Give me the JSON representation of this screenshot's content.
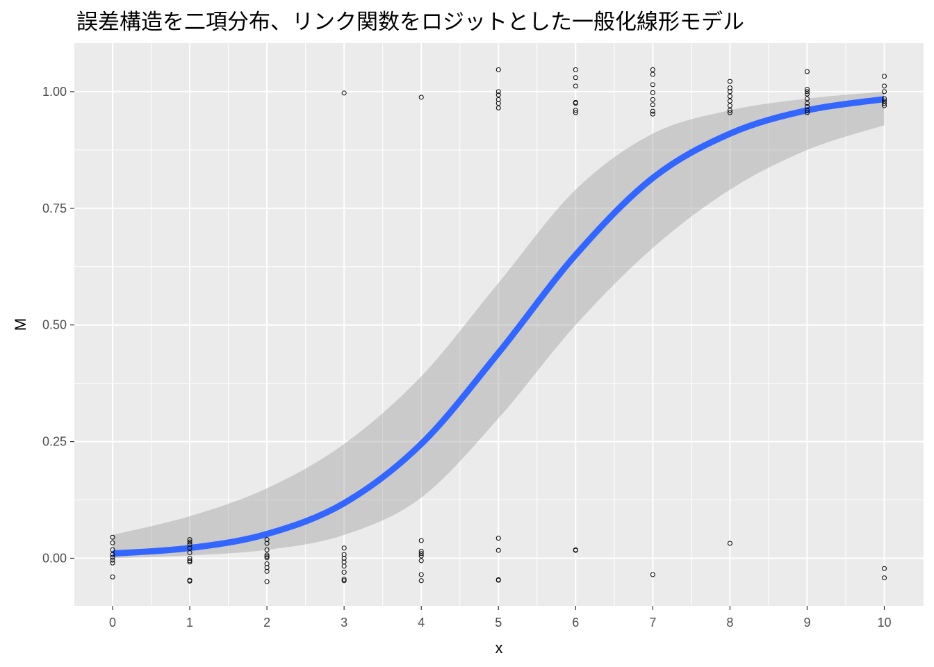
{
  "chart_data": {
    "type": "scatter",
    "title": "誤差構造を二項分布、リンク関数をロジットとした一般化線形モデル",
    "xlabel": "x",
    "ylabel": "M",
    "xlim": [
      -0.5,
      10.5
    ],
    "ylim": [
      -0.105,
      1.105
    ],
    "x_ticks": [
      0,
      1,
      2,
      3,
      4,
      5,
      6,
      7,
      8,
      9,
      10
    ],
    "y_ticks": [
      0.0,
      0.25,
      0.5,
      0.75,
      1.0
    ],
    "y_tick_labels": [
      "0.00",
      "0.25",
      "0.50",
      "0.75",
      "1.00"
    ],
    "grid": true,
    "background": "#ebebeb",
    "points": [
      {
        "x": 0,
        "y": 0.045
      },
      {
        "x": 0,
        "y": 0.033
      },
      {
        "x": 0,
        "y": 0.018
      },
      {
        "x": 0,
        "y": 0.008
      },
      {
        "x": 0,
        "y": 0.002
      },
      {
        "x": 0,
        "y": -0.004
      },
      {
        "x": 0,
        "y": -0.01
      },
      {
        "x": 0,
        "y": -0.04
      },
      {
        "x": 1,
        "y": 0.04
      },
      {
        "x": 1,
        "y": 0.035
      },
      {
        "x": 1,
        "y": 0.03
      },
      {
        "x": 1,
        "y": 0.022
      },
      {
        "x": 1,
        "y": 0.012
      },
      {
        "x": 1,
        "y": 0.0
      },
      {
        "x": 1,
        "y": -0.005
      },
      {
        "x": 1,
        "y": -0.008
      },
      {
        "x": 1,
        "y": -0.047
      },
      {
        "x": 1,
        "y": -0.049
      },
      {
        "x": 2,
        "y": 0.04
      },
      {
        "x": 2,
        "y": 0.032
      },
      {
        "x": 2,
        "y": 0.018
      },
      {
        "x": 2,
        "y": 0.007
      },
      {
        "x": 2,
        "y": 0.004
      },
      {
        "x": 2,
        "y": 0.001
      },
      {
        "x": 2,
        "y": -0.012
      },
      {
        "x": 2,
        "y": -0.02
      },
      {
        "x": 2,
        "y": -0.028
      },
      {
        "x": 2,
        "y": -0.05
      },
      {
        "x": 3,
        "y": 0.997
      },
      {
        "x": 3,
        "y": 0.022
      },
      {
        "x": 3,
        "y": 0.008
      },
      {
        "x": 3,
        "y": 0.0
      },
      {
        "x": 3,
        "y": -0.008
      },
      {
        "x": 3,
        "y": -0.017
      },
      {
        "x": 3,
        "y": -0.03
      },
      {
        "x": 3,
        "y": -0.045
      },
      {
        "x": 3,
        "y": -0.048
      },
      {
        "x": 4,
        "y": 0.988
      },
      {
        "x": 4,
        "y": 0.038
      },
      {
        "x": 4,
        "y": 0.015
      },
      {
        "x": 4,
        "y": 0.01
      },
      {
        "x": 4,
        "y": 0.005
      },
      {
        "x": 4,
        "y": -0.005
      },
      {
        "x": 4,
        "y": -0.035
      },
      {
        "x": 4,
        "y": -0.048
      },
      {
        "x": 5,
        "y": 1.047
      },
      {
        "x": 5,
        "y": 1.0
      },
      {
        "x": 5,
        "y": 0.993
      },
      {
        "x": 5,
        "y": 0.983
      },
      {
        "x": 5,
        "y": 0.975
      },
      {
        "x": 5,
        "y": 0.965
      },
      {
        "x": 5,
        "y": 0.043
      },
      {
        "x": 5,
        "y": 0.017
      },
      {
        "x": 5,
        "y": -0.046
      },
      {
        "x": 5,
        "y": -0.047
      },
      {
        "x": 6,
        "y": 1.047
      },
      {
        "x": 6,
        "y": 1.03
      },
      {
        "x": 6,
        "y": 1.012
      },
      {
        "x": 6,
        "y": 0.977
      },
      {
        "x": 6,
        "y": 0.975
      },
      {
        "x": 6,
        "y": 0.96
      },
      {
        "x": 6,
        "y": 0.955
      },
      {
        "x": 6,
        "y": 0.018
      },
      {
        "x": 6,
        "y": 0.017
      },
      {
        "x": 7,
        "y": 1.047
      },
      {
        "x": 7,
        "y": 1.037
      },
      {
        "x": 7,
        "y": 1.015
      },
      {
        "x": 7,
        "y": 0.998
      },
      {
        "x": 7,
        "y": 0.983
      },
      {
        "x": 7,
        "y": 0.972
      },
      {
        "x": 7,
        "y": 0.958
      },
      {
        "x": 7,
        "y": 0.952
      },
      {
        "x": 7,
        "y": -0.035
      },
      {
        "x": 8,
        "y": 1.022
      },
      {
        "x": 8,
        "y": 1.008
      },
      {
        "x": 8,
        "y": 1.0
      },
      {
        "x": 8,
        "y": 0.99
      },
      {
        "x": 8,
        "y": 0.98
      },
      {
        "x": 8,
        "y": 0.97
      },
      {
        "x": 8,
        "y": 0.96
      },
      {
        "x": 8,
        "y": 0.955
      },
      {
        "x": 8,
        "y": 0.032
      },
      {
        "x": 9,
        "y": 1.043
      },
      {
        "x": 9,
        "y": 1.005
      },
      {
        "x": 9,
        "y": 1.0
      },
      {
        "x": 9,
        "y": 0.995
      },
      {
        "x": 9,
        "y": 0.985
      },
      {
        "x": 9,
        "y": 0.975
      },
      {
        "x": 9,
        "y": 0.968
      },
      {
        "x": 9,
        "y": 0.96
      },
      {
        "x": 9,
        "y": 0.955
      },
      {
        "x": 10,
        "y": 1.033
      },
      {
        "x": 10,
        "y": 1.012
      },
      {
        "x": 10,
        "y": 1.0
      },
      {
        "x": 10,
        "y": 0.985
      },
      {
        "x": 10,
        "y": 0.98
      },
      {
        "x": 10,
        "y": 0.975
      },
      {
        "x": 10,
        "y": 0.97
      },
      {
        "x": 10,
        "y": -0.022
      },
      {
        "x": 10,
        "y": -0.042
      }
    ],
    "fit": {
      "x": [
        0,
        1,
        2,
        3,
        4,
        5,
        6,
        7,
        8,
        9,
        10
      ],
      "y": [
        0.01,
        0.022,
        0.052,
        0.118,
        0.245,
        0.44,
        0.65,
        0.815,
        0.91,
        0.96,
        0.984
      ],
      "lower": [
        0.0,
        0.006,
        0.018,
        0.05,
        0.13,
        0.3,
        0.5,
        0.665,
        0.79,
        0.875,
        0.928
      ],
      "upper": [
        0.05,
        0.09,
        0.15,
        0.245,
        0.39,
        0.59,
        0.79,
        0.91,
        0.96,
        0.985,
        1.0
      ],
      "color": "#3366ff",
      "band_color": "#999999"
    }
  }
}
